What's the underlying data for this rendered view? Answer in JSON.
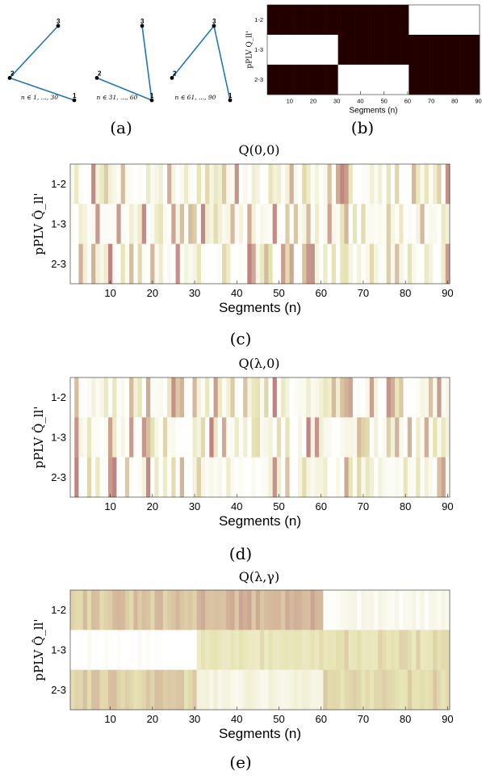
{
  "captions": [
    "(a)",
    "(b)",
    "(c)",
    "(d)",
    "(e)"
  ],
  "colors": {
    "line": "#1f77b4",
    "dark_cell": "#220000",
    "heat_low": "#ffffff",
    "heat_mid": "#e6e3b2",
    "heat_high": "#b9767a"
  },
  "chart_data": [
    {
      "id": "a",
      "type": "scatter",
      "panels": [
        {
          "label": "n ∈ 1, ..., 30",
          "nodes": [
            {
              "id": "1",
              "x": 1.0,
              "y": 0.0
            },
            {
              "id": "2",
              "x": 0.0,
              "y": 0.3
            },
            {
              "id": "3",
              "x": 0.75,
              "y": 1.0
            }
          ],
          "edges": [
            [
              "1",
              "2"
            ],
            [
              "2",
              "3"
            ]
          ]
        },
        {
          "label": "n ∈ 31, ..., 60",
          "nodes": [
            {
              "id": "1",
              "x": 1.0,
              "y": 0.0
            },
            {
              "id": "2",
              "x": 0.15,
              "y": 0.3
            },
            {
              "id": "3",
              "x": 0.85,
              "y": 1.0
            }
          ],
          "edges": [
            [
              "1",
              "3"
            ],
            [
              "1",
              "2"
            ]
          ]
        },
        {
          "label": "n ∈ 61, ..., 90",
          "nodes": [
            {
              "id": "1",
              "x": 1.0,
              "y": 0.0
            },
            {
              "id": "2",
              "x": 0.1,
              "y": 0.3
            },
            {
              "id": "3",
              "x": 0.75,
              "y": 1.0
            }
          ],
          "edges": [
            [
              "2",
              "3"
            ],
            [
              "3",
              "1"
            ]
          ]
        }
      ]
    },
    {
      "id": "b",
      "type": "heatmap",
      "title": "",
      "ylabel": "pPLV Q_ll'",
      "xlabel": "Segments (n)",
      "rows": [
        "1-2",
        "1-3",
        "2-3"
      ],
      "xticks": [
        10,
        20,
        30,
        40,
        50,
        60,
        70,
        80,
        90
      ],
      "n": 90,
      "binary": [
        [
          1,
          30,
          1,
          1
        ],
        [
          31,
          60,
          1,
          0
        ],
        [
          61,
          90,
          0,
          1
        ]
      ]
    },
    {
      "id": "c",
      "type": "heatmap",
      "title": "Q(0,0)",
      "ylabel": "pPLV Q̂_ll'",
      "xlabel": "Segments (n)",
      "rows": [
        "1-2",
        "1-3",
        "2-3"
      ],
      "xticks": [
        10,
        20,
        30,
        40,
        50,
        60,
        70,
        80,
        90
      ],
      "n": 90,
      "seed": 7
    },
    {
      "id": "d",
      "type": "heatmap",
      "title": "Q(λ,0)",
      "ylabel": "pPLV Q̂_ll'",
      "xlabel": "Segments (n)",
      "rows": [
        "1-2",
        "1-3",
        "2-3"
      ],
      "xticks": [
        10,
        20,
        30,
        40,
        50,
        60,
        70,
        80,
        90
      ],
      "n": 90,
      "seed": 19
    },
    {
      "id": "e",
      "type": "heatmap",
      "title": "Q(λ,γ)",
      "ylabel": "pPLV Q̂_ll'",
      "xlabel": "Segments (n)",
      "rows": [
        "1-2",
        "1-3",
        "2-3"
      ],
      "xticks": [
        10,
        20,
        30,
        40,
        50,
        60,
        70,
        80,
        90
      ],
      "n": 90,
      "seed": 31
    }
  ]
}
